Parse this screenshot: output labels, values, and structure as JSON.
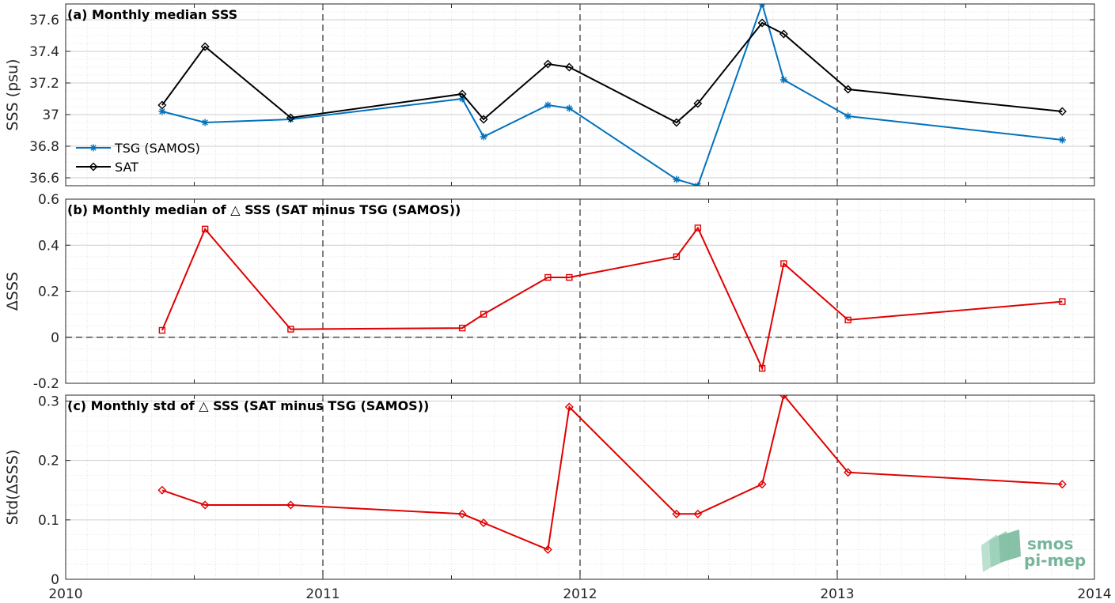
{
  "chart_data": [
    {
      "type": "line",
      "title": "(a) Monthly median SSS",
      "ylabel": "SSS (psu)",
      "xlim": [
        2010,
        2014
      ],
      "ylim": [
        36.55,
        37.7
      ],
      "yticks": [
        36.6,
        36.8,
        37,
        37.2,
        37.4,
        37.6
      ],
      "ytick_labels": [
        "36.6",
        "36.8",
        "37",
        "37.2",
        "37.4",
        "37.6"
      ],
      "grid": true,
      "legend": "bottom-left",
      "series": [
        {
          "name": "TSG (SAMOS)",
          "color": "#0072bd",
          "marker": "star",
          "x": [
            2010.375,
            2010.542,
            2010.875,
            2011.542,
            2011.625,
            2011.875,
            2011.958,
            2012.375,
            2012.458,
            2012.708,
            2012.792,
            2013.042,
            2013.875
          ],
          "y": [
            37.02,
            36.95,
            36.97,
            37.1,
            36.86,
            37.06,
            37.04,
            36.59,
            36.55,
            37.7,
            37.22,
            36.99,
            36.84
          ]
        },
        {
          "name": "SAT",
          "color": "#000000",
          "marker": "diamond",
          "x": [
            2010.375,
            2010.542,
            2010.875,
            2011.542,
            2011.625,
            2011.875,
            2011.958,
            2012.375,
            2012.458,
            2012.708,
            2012.792,
            2013.042,
            2013.875
          ],
          "y": [
            37.06,
            37.43,
            36.98,
            37.13,
            36.97,
            37.32,
            37.3,
            36.95,
            37.07,
            37.58,
            37.51,
            37.16,
            37.02
          ]
        }
      ]
    },
    {
      "type": "line",
      "title": "(b) Monthly median of △ SSS (SAT minus TSG (SAMOS))",
      "ylabel": "ΔSSS",
      "xlim": [
        2010,
        2014
      ],
      "ylim": [
        -0.2,
        0.6
      ],
      "yticks": [
        -0.2,
        0,
        0.2,
        0.4,
        0.6
      ],
      "ytick_labels": [
        "-0.2",
        "0",
        "0.2",
        "0.4",
        "0.6"
      ],
      "zero_line": true,
      "grid": true,
      "series": [
        {
          "color": "#e00000",
          "marker": "square",
          "x": [
            2010.375,
            2010.542,
            2010.875,
            2011.542,
            2011.625,
            2011.875,
            2011.958,
            2012.375,
            2012.458,
            2012.708,
            2012.792,
            2013.042,
            2013.875
          ],
          "y": [
            0.03,
            0.47,
            0.035,
            0.04,
            0.1,
            0.26,
            0.26,
            0.35,
            0.475,
            -0.135,
            0.32,
            0.075,
            0.155
          ]
        }
      ]
    },
    {
      "type": "line",
      "title": "(c) Monthly std of △ SSS (SAT minus TSG (SAMOS))",
      "ylabel": "Std(ΔSSS)",
      "xlim": [
        2010,
        2014
      ],
      "ylim": [
        0,
        0.31
      ],
      "yticks": [
        0,
        0.1,
        0.2,
        0.3
      ],
      "ytick_labels": [
        "0",
        "0.1",
        "0.2",
        "0.3"
      ],
      "xticks": [
        2010,
        2011,
        2012,
        2013,
        2014
      ],
      "xtick_labels": [
        "2010",
        "2011",
        "2012",
        "2013",
        "2014"
      ],
      "grid": true,
      "series": [
        {
          "color": "#e00000",
          "marker": "diamond",
          "x": [
            2010.375,
            2010.542,
            2010.875,
            2011.542,
            2011.625,
            2011.875,
            2011.958,
            2012.375,
            2012.458,
            2012.708,
            2012.792,
            2013.042,
            2013.875
          ],
          "y": [
            0.15,
            0.125,
            0.125,
            0.11,
            0.095,
            0.05,
            0.29,
            0.11,
            0.11,
            0.16,
            0.31,
            0.18,
            0.16
          ]
        }
      ]
    }
  ],
  "logo": {
    "line1": "smos",
    "line2": "pi-mep"
  }
}
